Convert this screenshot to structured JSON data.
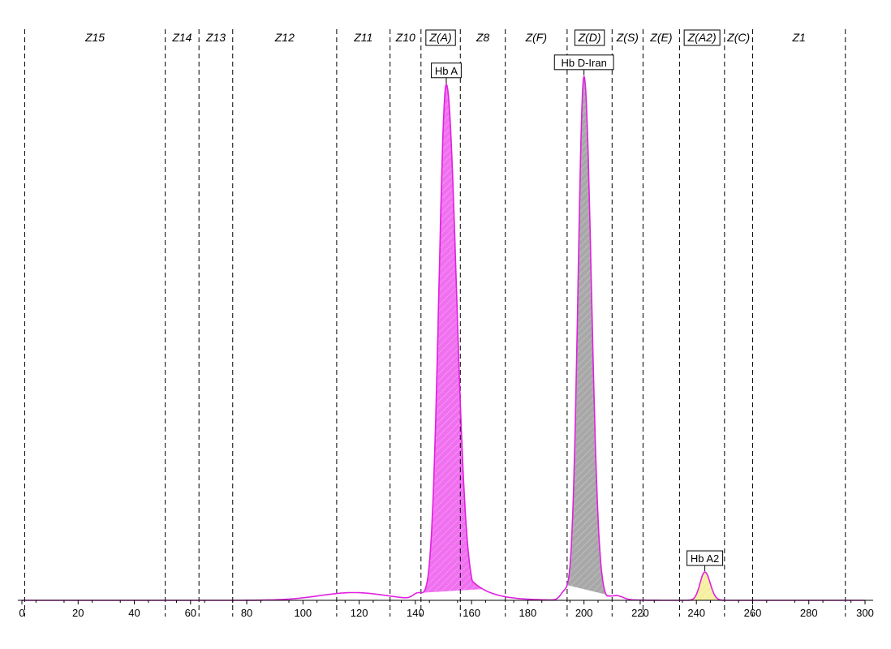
{
  "chart_data": {
    "type": "area",
    "title": "",
    "xlabel": "",
    "ylabel": "",
    "xlim": [
      0,
      300
    ],
    "x_ticks": [
      0,
      20,
      40,
      60,
      80,
      100,
      120,
      140,
      160,
      180,
      200,
      220,
      240,
      260,
      280,
      300
    ],
    "zone_boundaries": [
      1,
      51,
      63,
      75,
      112,
      131,
      142,
      156,
      172,
      194,
      210,
      221,
      234,
      250,
      260,
      293
    ],
    "zones": [
      {
        "label": "Z15",
        "boxed": false
      },
      {
        "label": "Z14",
        "boxed": false
      },
      {
        "label": "Z13",
        "boxed": false
      },
      {
        "label": "Z12",
        "boxed": false
      },
      {
        "label": "Z11",
        "boxed": false
      },
      {
        "label": "Z10",
        "boxed": false
      },
      {
        "label": "Z(A)",
        "boxed": true
      },
      {
        "label": "Z8",
        "boxed": false
      },
      {
        "label": "Z(F)",
        "boxed": false
      },
      {
        "label": "Z(D)",
        "boxed": true
      },
      {
        "label": "Z(S)",
        "boxed": false
      },
      {
        "label": "Z(E)",
        "boxed": false
      },
      {
        "label": "Z(A2)",
        "boxed": true
      },
      {
        "label": "Z(C)",
        "boxed": false
      },
      {
        "label": "Z1",
        "boxed": false
      }
    ],
    "peaks": [
      {
        "name": "Hb A",
        "x": 151,
        "height": 100,
        "fill_from": 142,
        "fill_to": 164,
        "color": "#f070f0"
      },
      {
        "name": "Hb D-Iran",
        "x": 200,
        "height": 101.6,
        "fill_from": 194,
        "fill_to": 210,
        "color": "#a8a8a8"
      },
      {
        "name": "Hb A2",
        "x": 243,
        "height": 5.5,
        "fill_from": 237,
        "fill_to": 249,
        "color": "#f5f0a0"
      }
    ],
    "baseline_hump": {
      "x": 118,
      "height": 1.5
    },
    "trace_color": "#e020e0"
  }
}
